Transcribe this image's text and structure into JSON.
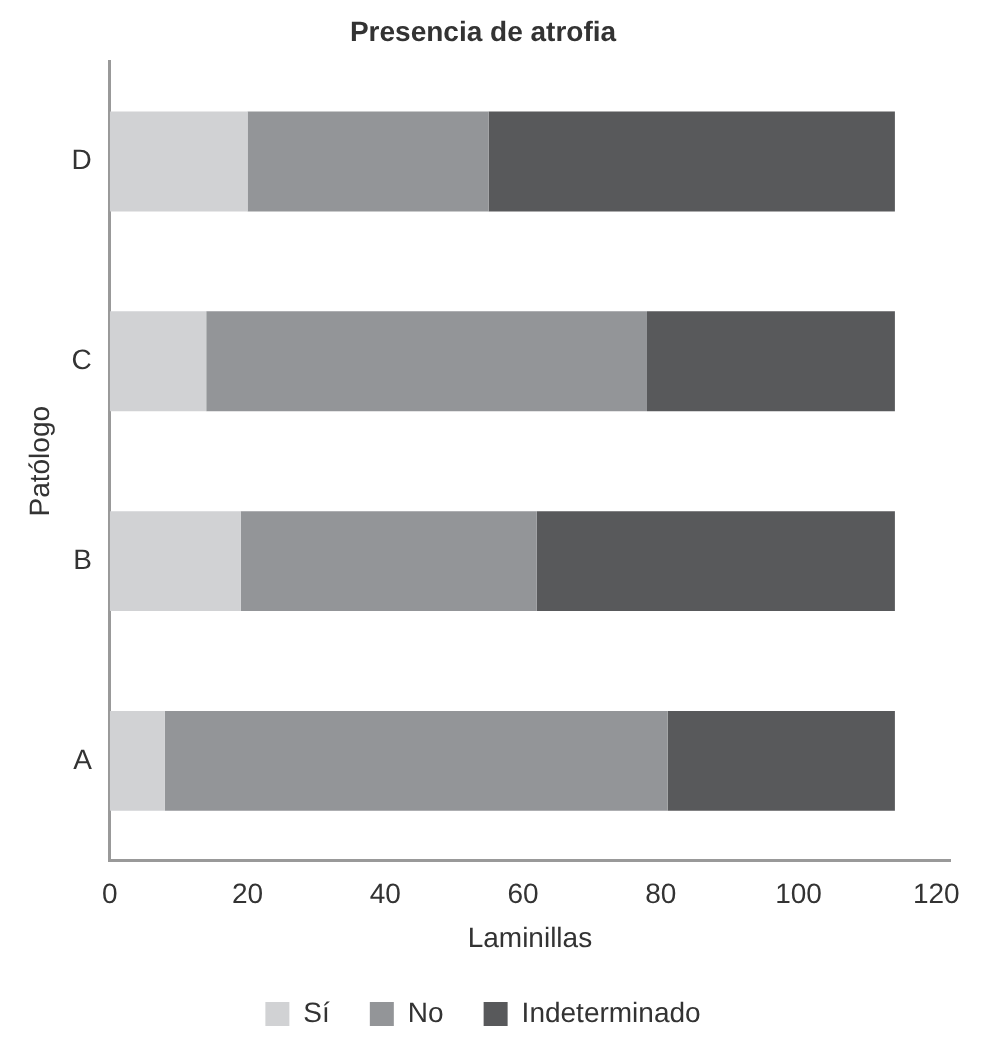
{
  "chart_data": {
    "type": "bar",
    "orientation": "horizontal",
    "stacked": true,
    "title": "Presencia de atrofia",
    "xlabel": "Laminillas",
    "ylabel": "Patólogo",
    "categories": [
      "D",
      "C",
      "B",
      "A"
    ],
    "series": [
      {
        "name": "Sí",
        "color": "#d1d2d4",
        "values": [
          20,
          14,
          19,
          8
        ]
      },
      {
        "name": "No",
        "color": "#939598",
        "values": [
          35,
          64,
          43,
          73
        ]
      },
      {
        "name": "Indeterminado",
        "color": "#58595b",
        "values": [
          59,
          36,
          52,
          33
        ]
      }
    ],
    "xlim": [
      0,
      122
    ],
    "xticks": [
      0,
      20,
      40,
      60,
      80,
      100,
      120
    ],
    "grid": false,
    "legend": "bottom"
  }
}
